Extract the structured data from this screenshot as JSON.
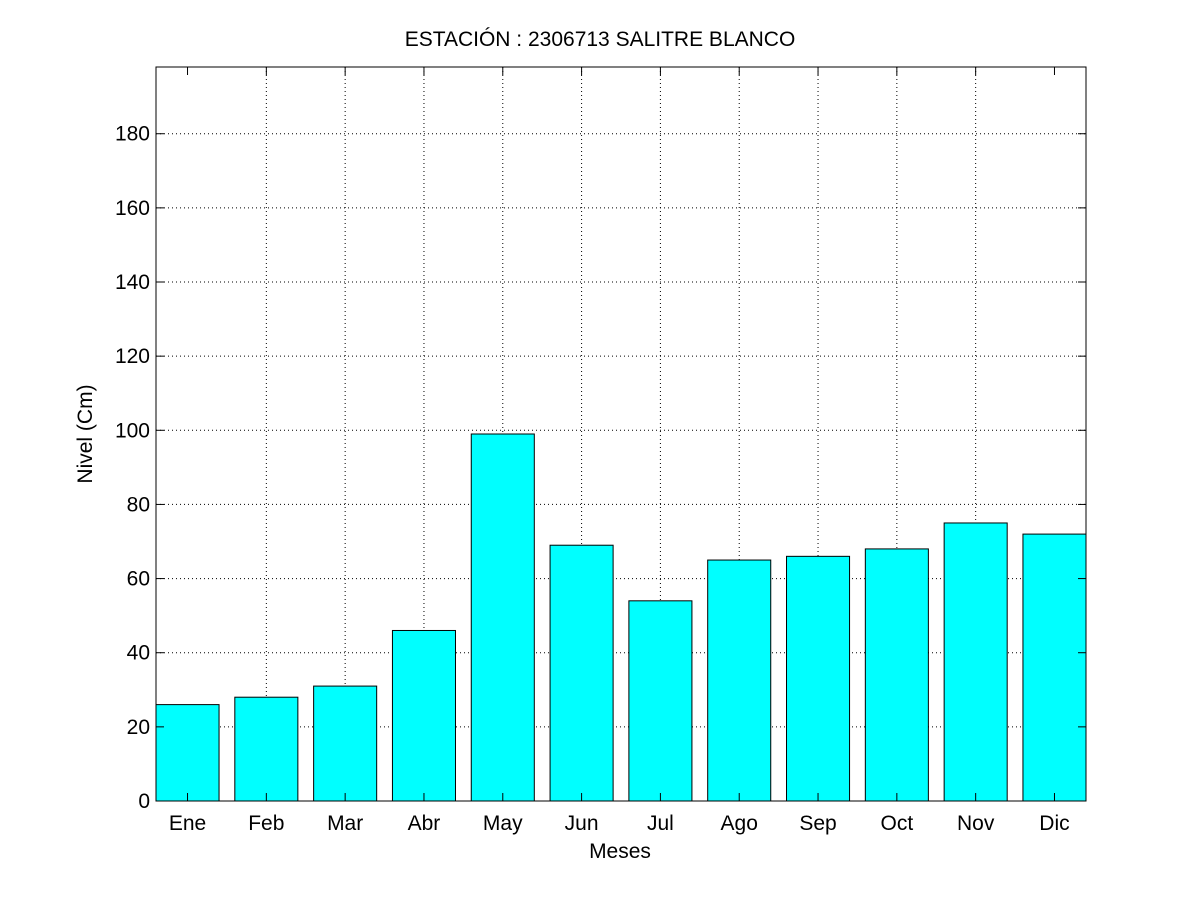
{
  "chart_data": {
    "type": "bar",
    "title": "ESTACIÓN :  2306713  SALITRE BLANCO",
    "xlabel": "Meses",
    "ylabel": "Nivel (Cm)",
    "categories": [
      "Ene",
      "Feb",
      "Mar",
      "Abr",
      "May",
      "Jun",
      "Jul",
      "Ago",
      "Sep",
      "Oct",
      "Nov",
      "Dic"
    ],
    "values": [
      26,
      28,
      31,
      46,
      99,
      69,
      54,
      65,
      66,
      68,
      75,
      72
    ],
    "ylim": [
      0,
      198
    ],
    "yticks": [
      0,
      20,
      40,
      60,
      80,
      100,
      120,
      140,
      160,
      180
    ],
    "grid": true,
    "bar_color": "#00FFFF",
    "edge_color": "#000000"
  }
}
